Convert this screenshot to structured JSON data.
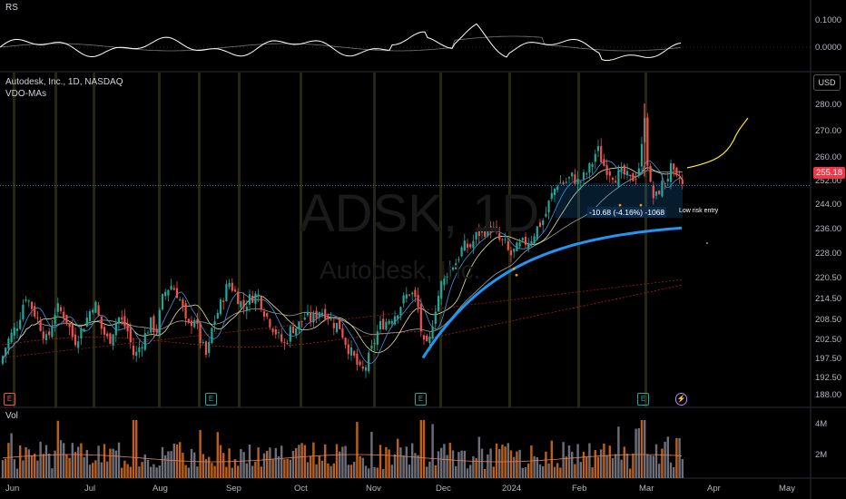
{
  "rs_panel": {
    "label": "RS",
    "ticks": [
      "0.1000",
      "0.0000"
    ]
  },
  "header": {
    "title": "Autodesk, Inc., 1D, NASDAQ",
    "indicator": "VDO-MAs"
  },
  "currency": "USD",
  "last_price": "255.18",
  "watermark": {
    "ticker": "ADSK, 1D",
    "name": "Autodesk, Inc."
  },
  "price_axis": [
    "280.00",
    "270.00",
    "260.00",
    "252.00",
    "244.00",
    "236.00",
    "228.00",
    "220.50",
    "214.50",
    "208.50",
    "202.50",
    "197.50",
    "192.50",
    "188.00"
  ],
  "volume_panel": {
    "label": "Vol",
    "ticks": [
      "4M",
      "2M"
    ]
  },
  "time_axis": [
    "Jun",
    "Jul",
    "Aug",
    "Sep",
    "Oct",
    "Nov",
    "Dec",
    "2024",
    "Feb",
    "Mar",
    "Apr",
    "May"
  ],
  "annotations": {
    "measure": "-10.68 (-4.16%) -1068",
    "note": "Low risk entry"
  },
  "event_badges": {
    "earnings": "E",
    "dividend": "⚡"
  },
  "colors": {
    "up": "#26a69a",
    "down": "#ef5350",
    "ma_blue": "#2196f3",
    "forecast": "#ffeb3b",
    "vol_up": "#787b86",
    "vol_down": "#d2691e"
  },
  "chart_data": {
    "type": "candlestick",
    "period": "1D",
    "ylim": [
      188,
      285
    ],
    "key_prices": {
      "start_jun": 199,
      "jul_high": 224,
      "aug_low": 205,
      "sep_high": 226,
      "oct_low": 204,
      "nov_low": 199,
      "dec_high": 242,
      "feb_high": 269,
      "mar_spike_high": 279,
      "last": 255.18
    },
    "moving_averages": [
      "10",
      "21",
      "50",
      "150",
      "200"
    ],
    "volume_max": "4M"
  }
}
